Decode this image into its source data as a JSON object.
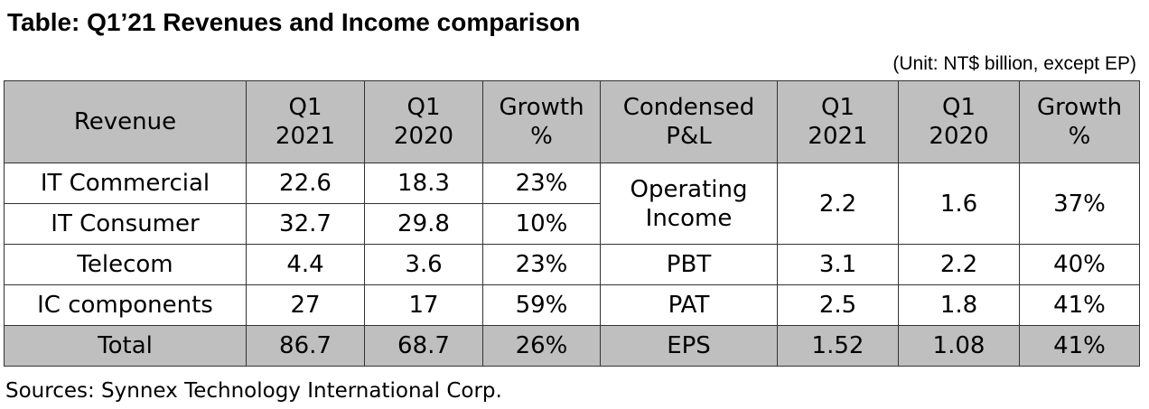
{
  "title": "Table: Q1’21 Revenues and Income comparison",
  "unit_note": "(Unit: NT$ billion, except EP)",
  "headers": {
    "revenue": "Revenue",
    "q1_2021_line1": "Q1",
    "q1_2021_line2": "2021",
    "q1_2020_line1": "Q1",
    "q1_2020_line2": "2020",
    "growth_line1": "Growth",
    "growth_line2": "%",
    "pl_line1": "Condensed",
    "pl_line2": "P&L",
    "pl_q1_2021_line1": "Q1",
    "pl_q1_2021_line2": "2021",
    "pl_q1_2020_line1": "Q1",
    "pl_q1_2020_line2": "2020",
    "pl_growth_line1": "Growth",
    "pl_growth_line2": "%"
  },
  "revenue_rows": [
    {
      "name": "IT Commercial",
      "q1_2021": "22.6",
      "q1_2020": "18.3",
      "growth": "23%"
    },
    {
      "name": "IT Consumer",
      "q1_2021": "32.7",
      "q1_2020": "29.8",
      "growth": "10%"
    },
    {
      "name": "Telecom",
      "q1_2021": "4.4",
      "q1_2020": "3.6",
      "growth": "23%"
    },
    {
      "name": "IC components",
      "q1_2021": "27",
      "q1_2020": "17",
      "growth": "59%"
    },
    {
      "name": "Total",
      "q1_2021": "86.7",
      "q1_2020": "68.7",
      "growth": "26%"
    }
  ],
  "pl_rows": [
    {
      "name_line1": "Operating",
      "name_line2": "Income",
      "q1_2021": "2.2",
      "q1_2020": "1.6",
      "growth": "37%"
    },
    {
      "name": "PBT",
      "q1_2021": "3.1",
      "q1_2020": "2.2",
      "growth": "40%"
    },
    {
      "name": "PAT",
      "q1_2021": "2.5",
      "q1_2020": "1.8",
      "growth": "41%"
    },
    {
      "name": "EPS",
      "q1_2021": "1.52",
      "q1_2020": "1.08",
      "growth": "41%"
    }
  ],
  "source": "Sources: Synnex Technology International Corp."
}
